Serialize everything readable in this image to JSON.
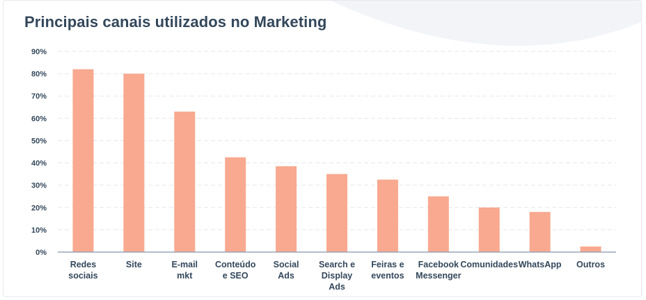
{
  "colors": {
    "bar": "#f8a98f",
    "grid": "#e3e7ee",
    "axis": "#99a6b8",
    "text": "#33475b",
    "decoration": "#f2f4f8"
  },
  "chart_data": {
    "type": "bar",
    "title": "Principais canais utilizados no Marketing",
    "xlabel": "",
    "ylabel": "",
    "ylim": [
      0,
      90
    ],
    "yticks": [
      {
        "value": 0,
        "label": "0%"
      },
      {
        "value": 10,
        "label": "10%"
      },
      {
        "value": 20,
        "label": "20%"
      },
      {
        "value": 30,
        "label": "30%"
      },
      {
        "value": 40,
        "label": "40%"
      },
      {
        "value": 50,
        "label": "50%"
      },
      {
        "value": 60,
        "label": "60%"
      },
      {
        "value": 70,
        "label": "70%"
      },
      {
        "value": 80,
        "label": "80%"
      },
      {
        "value": 90,
        "label": "90%"
      }
    ],
    "grid": true,
    "categories": [
      [
        "Redes",
        "sociais"
      ],
      [
        "Site"
      ],
      [
        "E-mail",
        "mkt"
      ],
      [
        "Conteúdo",
        "e SEO"
      ],
      [
        "Social",
        "Ads"
      ],
      [
        "Search e",
        "Display",
        "Ads"
      ],
      [
        "Feiras e",
        "eventos"
      ],
      [
        "Facebook",
        "Messenger"
      ],
      [
        "Comunidades"
      ],
      [
        "WhatsApp"
      ],
      [
        "Outros"
      ]
    ],
    "values": [
      82,
      80,
      63,
      42.5,
      38.5,
      35,
      32.5,
      25,
      20,
      18,
      2.5
    ]
  }
}
